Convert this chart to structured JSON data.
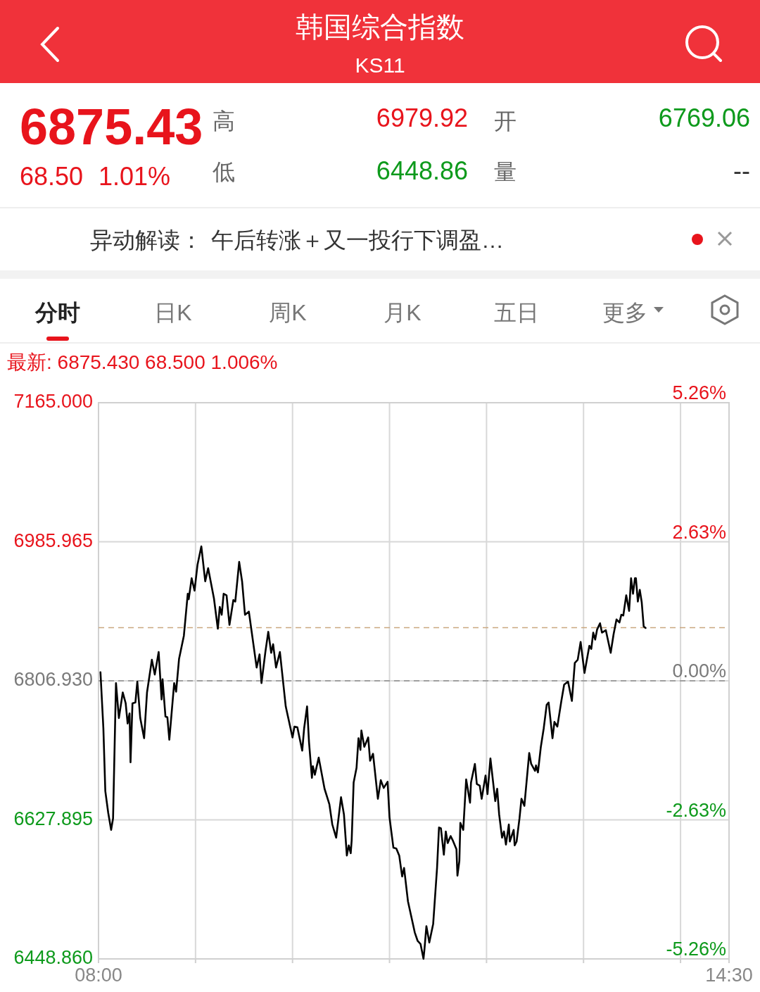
{
  "chart_data": {
    "type": "line",
    "title": "韩国综合指数",
    "subtitle": "KS11",
    "annotations": [
      "6875.43",
      "68.50",
      "1.01%",
      "高",
      "6979.92",
      "开",
      "6769.06",
      "低",
      "6448.86",
      "量",
      "--",
      "异动解读：",
      "午后转涨＋又一投行下调盈…",
      "分时",
      "日K",
      "周K",
      "月K",
      "五日",
      "更多",
      "最新: 6875.430  68.500  1.006%"
    ],
    "x": [
      8.02,
      8.05,
      8.07,
      8.1,
      8.13,
      8.15,
      8.18,
      8.21,
      8.25,
      8.28,
      8.3,
      8.32,
      8.33,
      8.35,
      8.38,
      8.4,
      8.43,
      8.47,
      8.5,
      8.55,
      8.58,
      8.62,
      8.65,
      8.66,
      8.69,
      8.71,
      8.73,
      8.78,
      8.8,
      8.83,
      8.88,
      8.92,
      8.93,
      8.96,
      8.99,
      9.02,
      9.06,
      9.1,
      9.13,
      9.19,
      9.23,
      9.25,
      9.27,
      9.29,
      9.32,
      9.35,
      9.39,
      9.41,
      9.45,
      9.48,
      9.51,
      9.55,
      9.63,
      9.66,
      9.68,
      9.72,
      9.75,
      9.78,
      9.8,
      9.83,
      9.87,
      9.93,
      10.0,
      10.02,
      10.05,
      10.1,
      10.12,
      10.15,
      10.17,
      10.2,
      10.21,
      10.23,
      10.27,
      10.33,
      10.38,
      10.41,
      10.45,
      10.5,
      10.53,
      10.56,
      10.58,
      10.6,
      10.61,
      10.63,
      10.66,
      10.68,
      10.7,
      10.71,
      10.74,
      10.78,
      10.8,
      10.83,
      10.88,
      10.91,
      10.94,
      10.98,
      11.0,
      11.04,
      11.07,
      11.1,
      11.13,
      11.15,
      11.19,
      11.26,
      11.29,
      11.32,
      11.35,
      11.36,
      11.38,
      11.41,
      11.45,
      11.49,
      11.51,
      11.53,
      11.56,
      11.58,
      11.6,
      11.63,
      11.65,
      11.69,
      11.7,
      11.72,
      11.73,
      11.76,
      11.79,
      11.83,
      11.84,
      11.88,
      11.9,
      11.93,
      11.95,
      11.99,
      12.01,
      12.04,
      12.09,
      12.11,
      12.13,
      12.16,
      12.18,
      12.2,
      12.23,
      12.24,
      12.28,
      12.29,
      12.31,
      12.34,
      12.36,
      12.39,
      12.44,
      12.46,
      12.5,
      12.51,
      12.53,
      12.56,
      12.59,
      12.62,
      12.64,
      12.68,
      12.7,
      12.73,
      12.77,
      12.8,
      12.84,
      12.88,
      12.91,
      12.94,
      12.97,
      13.01,
      13.06,
      13.08,
      13.1,
      13.12,
      13.14,
      13.17,
      13.19,
      13.23,
      13.28,
      13.31,
      13.34,
      13.37,
      13.39,
      13.41,
      13.44,
      13.47,
      13.49,
      13.51,
      13.53,
      13.54,
      13.56,
      13.58,
      13.6,
      13.62,
      13.64
    ],
    "series": [
      {
        "color": "#000000",
        "values": [
          6818,
          6746,
          6665,
          6637,
          6615,
          6630,
          6804,
          6759,
          6792,
          6778,
          6752,
          6765,
          6702,
          6778,
          6779,
          6806,
          6759,
          6733,
          6792,
          6834,
          6815,
          6844,
          6783,
          6809,
          6761,
          6760,
          6731,
          6804,
          6793,
          6835,
          6865,
          6919,
          6912,
          6939,
          6923,
          6956,
          6980,
          6935,
          6952,
          6913,
          6874,
          6902,
          6892,
          6919,
          6917,
          6879,
          6911,
          6909,
          6960,
          6935,
          6892,
          6896,
          6824,
          6841,
          6804,
          6844,
          6870,
          6843,
          6854,
          6824,
          6844,
          6774,
          6734,
          6748,
          6747,
          6717,
          6746,
          6774,
          6728,
          6682,
          6697,
          6686,
          6708,
          6668,
          6648,
          6622,
          6605,
          6657,
          6635,
          6582,
          6595,
          6585,
          6602,
          6676,
          6695,
          6733,
          6718,
          6743,
          6722,
          6734,
          6704,
          6713,
          6655,
          6679,
          6669,
          6677,
          6631,
          6592,
          6591,
          6582,
          6555,
          6566,
          6523,
          6483,
          6472,
          6468,
          6449,
          6461,
          6491,
          6470,
          6494,
          6566,
          6618,
          6617,
          6583,
          6613,
          6598,
          6607,
          6602,
          6590,
          6556,
          6575,
          6624,
          6615,
          6680,
          6650,
          6676,
          6700,
          6674,
          6672,
          6655,
          6685,
          6661,
          6707,
          6652,
          6668,
          6635,
          6605,
          6613,
          6596,
          6622,
          6600,
          6615,
          6595,
          6600,
          6630,
          6655,
          6646,
          6714,
          6700,
          6691,
          6698,
          6689,
          6722,
          6746,
          6776,
          6779,
          6733,
          6754,
          6748,
          6780,
          6802,
          6806,
          6781,
          6830,
          6834,
          6857,
          6817,
          6852,
          6848,
          6869,
          6860,
          6873,
          6881,
          6869,
          6872,
          6843,
          6867,
          6886,
          6882,
          6892,
          6891,
          6917,
          6897,
          6939,
          6919,
          6939,
          6939,
          6909,
          6924,
          6908,
          6877,
          6875
        ]
      }
    ],
    "xlim": [
      8,
      14.5
    ],
    "xticks": [
      {
        "value": 8,
        "label": "08:00"
      },
      {
        "value": 9,
        "label": null
      },
      {
        "value": 10,
        "label": null
      },
      {
        "value": 11,
        "label": null
      },
      {
        "value": 12,
        "label": null
      },
      {
        "value": 13,
        "label": null
      },
      {
        "value": 14,
        "label": null
      },
      {
        "value": 14.5,
        "label": "14:30"
      }
    ],
    "ylim": [
      6448.86,
      7165
    ],
    "yticks": [
      {
        "value": 7165,
        "label": "7165.000"
      },
      {
        "value": 6985.965,
        "label": "6985.965"
      },
      {
        "value": 6806.93,
        "label": "6806.930"
      },
      {
        "value": 6627.895,
        "label": "6627.895"
      },
      {
        "value": 6448.86,
        "label": "6448.860"
      }
    ],
    "y2lim": [
      -5.26,
      5.26
    ],
    "y2ticks": [
      {
        "value": 5.26,
        "label": "5.26%"
      },
      {
        "value": 2.63,
        "label": "2.63%"
      },
      {
        "value": 0,
        "label": "0.00%"
      },
      {
        "value": -2.63,
        "label": "-2.63%"
      },
      {
        "value": -5.26,
        "label": "-5.26%"
      }
    ],
    "ref_lines": [
      {
        "axis": "y",
        "value": 6806.93,
        "color": "#8c8c8c",
        "line_style": "dashed"
      },
      {
        "axis": "y",
        "value": 6875.43,
        "color": "#c9a77f",
        "line_style": "dashed"
      }
    ],
    "grid": true,
    "line_style": "solid"
  }
}
